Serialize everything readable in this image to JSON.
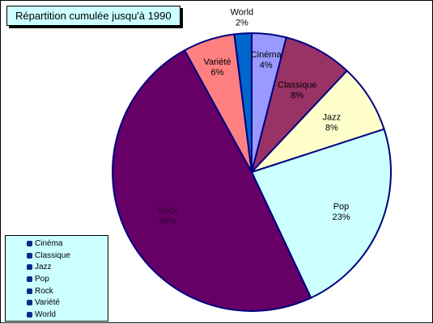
{
  "chart_data": {
    "type": "pie",
    "title": "Répartition cumulée jusqu'à 1990",
    "slices": [
      {
        "label": "Cinéma",
        "value": 4,
        "display": "4%",
        "color": "#9999ff"
      },
      {
        "label": "Classique",
        "value": 8,
        "display": "8%",
        "color": "#993366"
      },
      {
        "label": "Jazz",
        "value": 8,
        "display": "8%",
        "color": "#ffffcc"
      },
      {
        "label": "Pop",
        "value": 23,
        "display": "23%",
        "color": "#ccffff"
      },
      {
        "label": "Rock",
        "value": 49,
        "display": "49%",
        "color": "#660066"
      },
      {
        "label": "Variété",
        "value": 6,
        "display": "6%",
        "color": "#ff8080"
      },
      {
        "label": "World",
        "value": 2,
        "display": "2%",
        "color": "#0066cc"
      }
    ],
    "legend": {
      "placement": "bottom-left",
      "entries": [
        "Cinéma",
        "Classique",
        "Jazz",
        "Pop",
        "Rock",
        "Variété",
        "World"
      ]
    }
  },
  "colors": {
    "outline": "#000080",
    "title_background": "#ccffff",
    "legend_background": "#ccffff",
    "legend_marker": "#0b2a8a"
  }
}
